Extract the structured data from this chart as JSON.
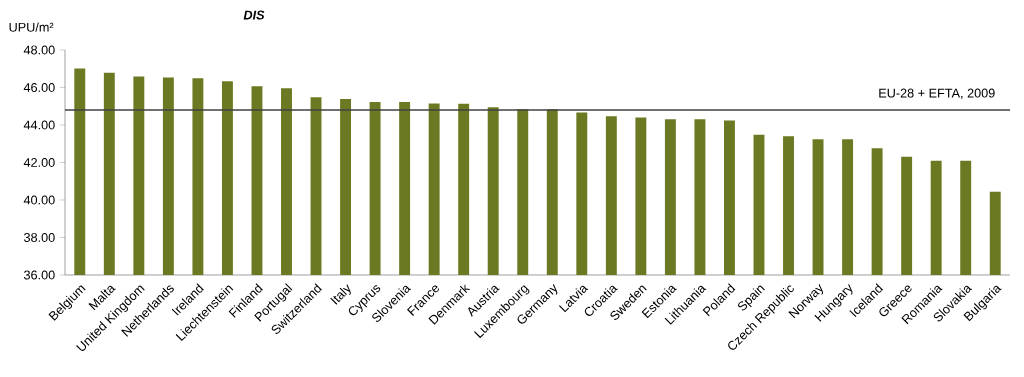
{
  "chart_data": {
    "type": "bar",
    "title": "DIS",
    "ylabel": "UPU/m²",
    "categories": [
      "Belgium",
      "Malta",
      "United Kingdom",
      "Netherlands",
      "Ireland",
      "Liechtenstein",
      "Finland",
      "Portugal",
      "Switzerland",
      "Italy",
      "Cyprus",
      "Slovenia",
      "France",
      "Denmark",
      "Austria",
      "Luxembourg",
      "Germany",
      "Latvia",
      "Croatia",
      "Sweden",
      "Estonia",
      "Lithuania",
      "Poland",
      "Spain",
      "Czech Republic",
      "Norway",
      "Hungary",
      "Iceland",
      "Greece",
      "Romania",
      "Slovakia",
      "Bulgaria"
    ],
    "values": [
      47.01,
      46.79,
      46.58,
      46.53,
      46.49,
      46.33,
      46.06,
      45.96,
      45.48,
      45.38,
      45.23,
      45.22,
      45.14,
      45.13,
      44.95,
      44.84,
      44.84,
      44.67,
      44.47,
      44.4,
      44.31,
      44.31,
      44.24,
      43.48,
      43.4,
      43.24,
      43.24,
      42.76,
      42.3,
      42.09,
      42.09,
      40.44
    ],
    "color": "#6b7a22",
    "ylim": [
      36,
      48
    ],
    "yticks": [
      {
        "value": 36,
        "label": "36.00"
      },
      {
        "value": 38,
        "label": "38.00"
      },
      {
        "value": 40,
        "label": "40.00"
      },
      {
        "value": 42,
        "label": "42.00"
      },
      {
        "value": 44,
        "label": "44.00"
      },
      {
        "value": 46,
        "label": "46.00"
      },
      {
        "value": 48,
        "label": "48.00"
      }
    ],
    "ref_lines": [
      {
        "axis": "y",
        "value": 44.8,
        "label": "EU-28 + EFTA, 2009",
        "color": "#404040"
      }
    ]
  }
}
